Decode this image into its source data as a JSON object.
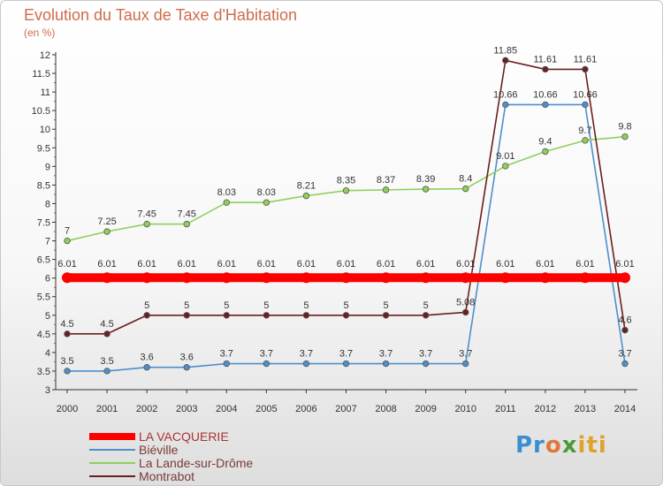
{
  "chart_data": {
    "type": "line",
    "title": "Evolution du Taux de Taxe d'Habitation",
    "unit_label": "(en %)",
    "x": [
      "2000",
      "2001",
      "2002",
      "2003",
      "2004",
      "2005",
      "2006",
      "2007",
      "2008",
      "2009",
      "2010",
      "2011",
      "2012",
      "2013",
      "2014"
    ],
    "ylim": [
      3,
      12
    ],
    "yticks": [
      "3",
      "3.5",
      "4",
      "4.5",
      "5",
      "5.5",
      "6",
      "6.5",
      "7",
      "7.5",
      "8",
      "8.5",
      "9",
      "9.5",
      "10",
      "10.5",
      "11",
      "11.5",
      "12"
    ],
    "grid": false,
    "legend_position": "bottom-left",
    "series": [
      {
        "name": "LA VACQUERIE",
        "color": "#ff0000",
        "highlight": true,
        "values": [
          6.01,
          6.01,
          6.01,
          6.01,
          6.01,
          6.01,
          6.01,
          6.01,
          6.01,
          6.01,
          6.01,
          6.01,
          6.01,
          6.01,
          6.01
        ],
        "labels": [
          "6.01",
          "6.01",
          "6.01",
          "6.01",
          "6.01",
          "6.01",
          "6.01",
          "6.01",
          "6.01",
          "6.01",
          "6.01",
          "6.01",
          "6.01",
          "6.01",
          "6.01"
        ]
      },
      {
        "name": "Biéville",
        "color": "#4d8fcb",
        "values": [
          3.5,
          3.5,
          3.6,
          3.6,
          3.7,
          3.7,
          3.7,
          3.7,
          3.7,
          3.7,
          3.7,
          10.66,
          10.66,
          10.66,
          3.7
        ],
        "labels": [
          "3.5",
          "3.5",
          "3.6",
          "3.6",
          "3.7",
          "3.7",
          "3.7",
          "3.7",
          "3.7",
          "3.7",
          "3.7",
          "10.66",
          "10.66",
          "10.66",
          "3.7"
        ]
      },
      {
        "name": "La Lande-sur-Drôme",
        "color": "#8fd05c",
        "values": [
          7,
          7.25,
          7.45,
          7.45,
          8.03,
          8.03,
          8.21,
          8.35,
          8.37,
          8.39,
          8.4,
          9.01,
          9.4,
          9.7,
          9.8
        ],
        "labels": [
          "7",
          "7.25",
          "7.45",
          "7.45",
          "8.03",
          "8.03",
          "8.21",
          "8.35",
          "8.37",
          "8.39",
          "8.4",
          "9.01",
          "9.4",
          "9.7",
          "9.8"
        ]
      },
      {
        "name": "Montrabot",
        "color": "#6b1f1f",
        "values": [
          4.5,
          4.5,
          5,
          5,
          5,
          5,
          5,
          5,
          5,
          5,
          5.08,
          11.85,
          11.61,
          11.61,
          4.6
        ],
        "labels": [
          "4.5",
          "4.5",
          "5",
          "5",
          "5",
          "5",
          "5",
          "5",
          "5",
          "5",
          "5.08",
          "11.85",
          "11.61",
          "11.61",
          "4.6"
        ]
      }
    ]
  },
  "logo": {
    "parts": [
      "Pr",
      "o",
      "x",
      "iti"
    ]
  }
}
